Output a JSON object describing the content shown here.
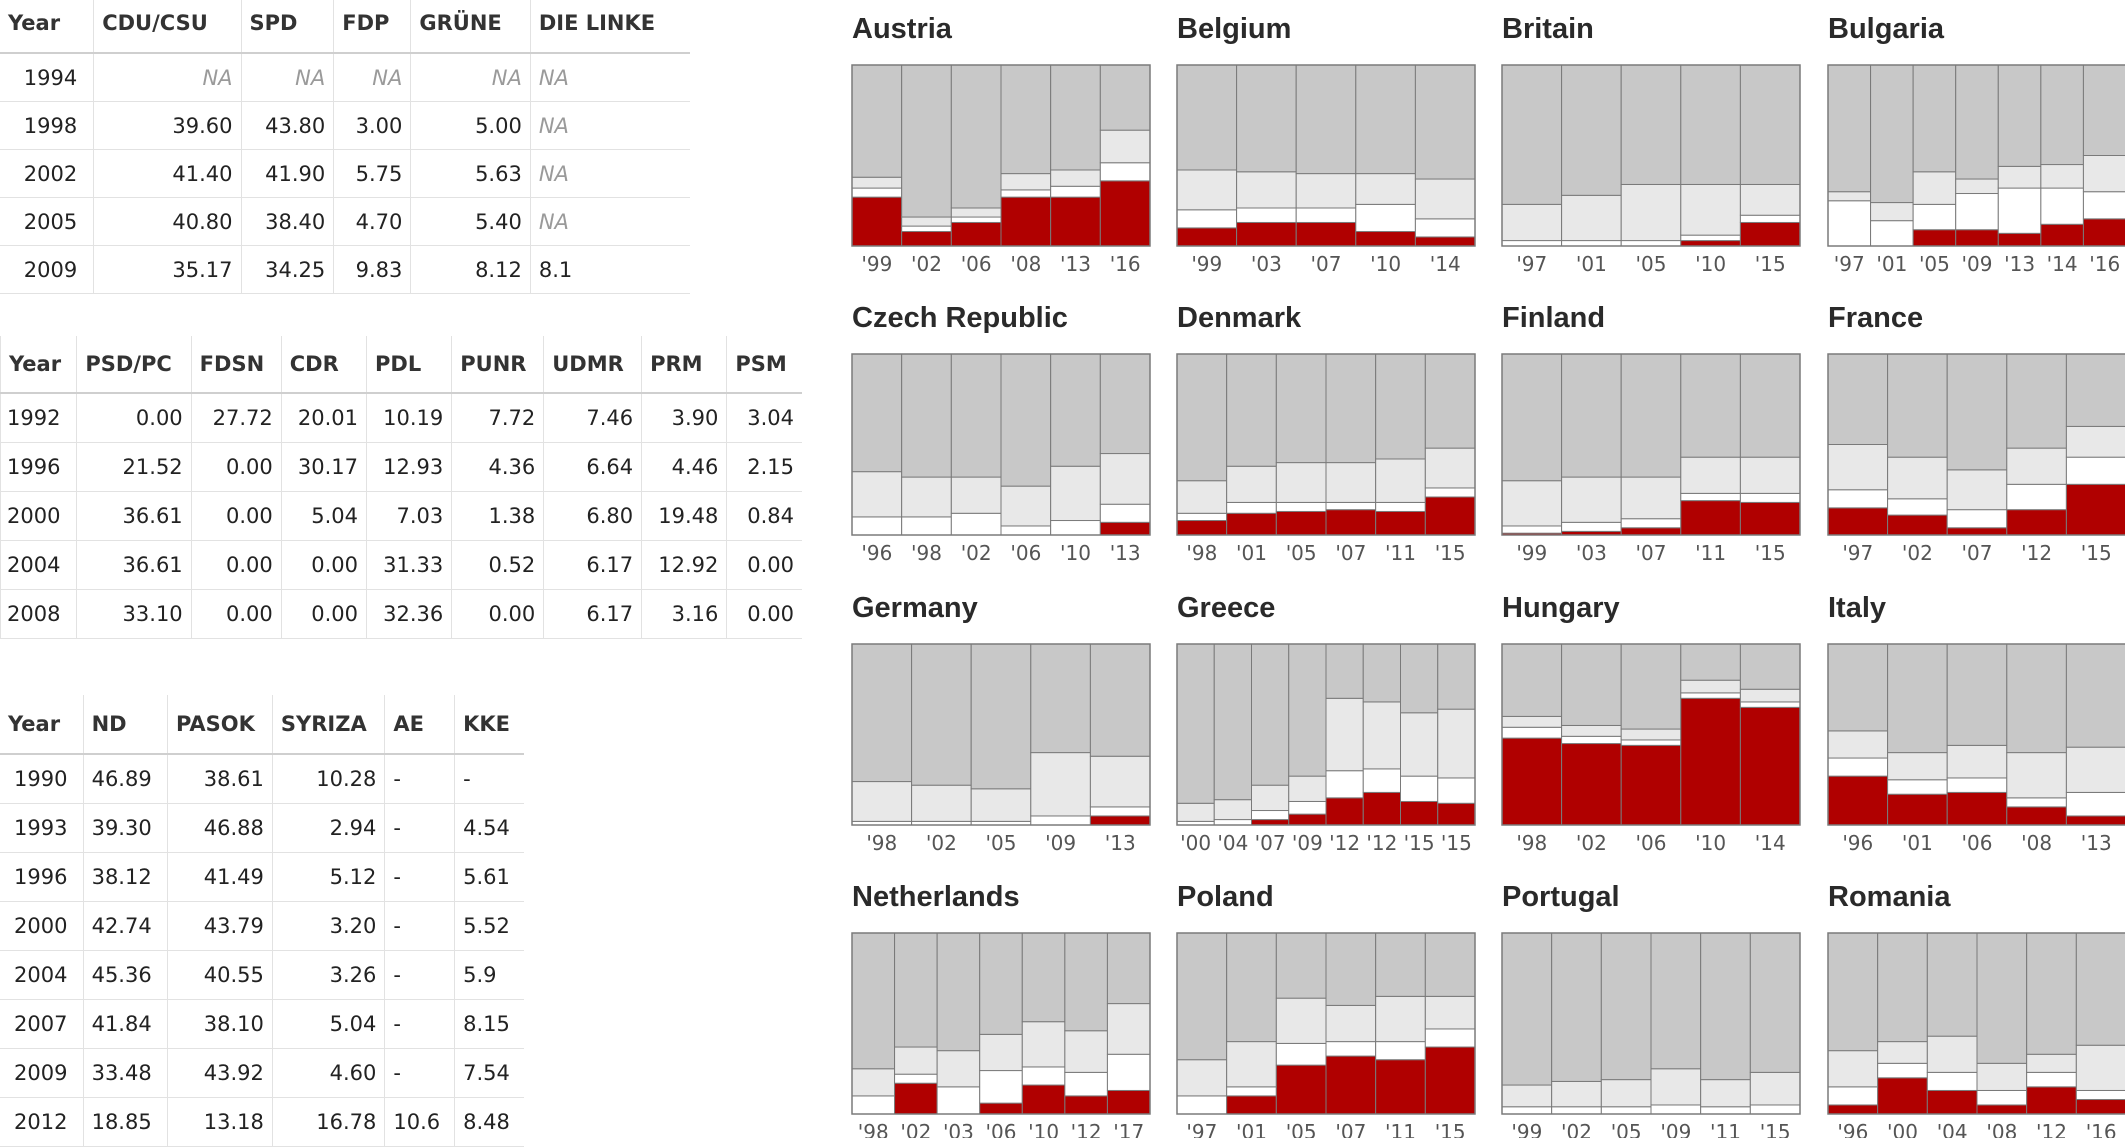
{
  "tables": [
    {
      "columns": [
        "Year",
        "CDU/CSU",
        "SPD",
        "FDP",
        "GRÜNE",
        "DIE LINKE"
      ],
      "rows": [
        [
          "1994",
          "NA",
          "NA",
          "NA",
          "NA",
          "NA"
        ],
        [
          "1998",
          "39.60",
          "43.80",
          "3.00",
          "5.00",
          "NA"
        ],
        [
          "2002",
          "41.40",
          "41.90",
          "5.75",
          "5.63",
          "NA"
        ],
        [
          "2005",
          "40.80",
          "38.40",
          "4.70",
          "5.40",
          "NA"
        ],
        [
          "2009",
          "35.17",
          "34.25",
          "9.83",
          "8.12",
          "8.1"
        ]
      ]
    },
    {
      "columns": [
        "Year",
        "PSD/PC",
        "FDSN",
        "CDR",
        "PDL",
        "PUNR",
        "UDMR",
        "PRM",
        "PSM"
      ],
      "rows": [
        [
          "1992",
          "0.00",
          "27.72",
          "20.01",
          "10.19",
          "7.72",
          "7.46",
          "3.90",
          "3.04"
        ],
        [
          "1996",
          "21.52",
          "0.00",
          "30.17",
          "12.93",
          "4.36",
          "6.64",
          "4.46",
          "2.15"
        ],
        [
          "2000",
          "36.61",
          "0.00",
          "5.04",
          "7.03",
          "1.38",
          "6.80",
          "19.48",
          "0.84"
        ],
        [
          "2004",
          "36.61",
          "0.00",
          "0.00",
          "31.33",
          "0.52",
          "6.17",
          "12.92",
          "0.00"
        ],
        [
          "2008",
          "33.10",
          "0.00",
          "0.00",
          "32.36",
          "0.00",
          "6.17",
          "3.16",
          "0.00"
        ]
      ]
    },
    {
      "columns": [
        "Year",
        "ND",
        "PASOK",
        "SYRIZA",
        "AE",
        "KKE"
      ],
      "rows": [
        [
          "1990",
          "46.89",
          "38.61",
          "10.28",
          "-",
          "-"
        ],
        [
          "1993",
          "39.30",
          "46.88",
          "2.94",
          "-",
          "4.54"
        ],
        [
          "1996",
          "38.12",
          "41.49",
          "5.12",
          "-",
          "5.61"
        ],
        [
          "2000",
          "42.74",
          "43.79",
          "3.20",
          "-",
          "5.52"
        ],
        [
          "2004",
          "45.36",
          "40.55",
          "3.26",
          "-",
          "5.9"
        ],
        [
          "2007",
          "41.84",
          "38.10",
          "5.04",
          "-",
          "8.15"
        ],
        [
          "2009",
          "33.48",
          "43.92",
          "4.60",
          "-",
          "7.54"
        ],
        [
          "2012",
          "18.85",
          "13.18",
          "16.78",
          "10.6",
          "8.48"
        ]
      ]
    }
  ],
  "colors": {
    "red": "#b00000",
    "grey": "#c8c8c8",
    "light": "#e8e8e8",
    "white": "#ffffff"
  },
  "chart_data": [
    {
      "type": "bar",
      "title": "Austria",
      "categories": [
        "'99",
        "'02",
        "'06",
        "'08",
        "'13",
        "'16"
      ],
      "ylim": [
        0,
        100
      ],
      "series": [
        {
          "values": [
            27,
            8,
            13,
            27,
            27,
            36
          ]
        },
        {
          "values": [
            5,
            3,
            3,
            4,
            6,
            10
          ]
        },
        {
          "values": [
            6,
            5,
            5,
            9,
            9,
            18
          ]
        },
        {
          "values": [
            62,
            84,
            79,
            60,
            58,
            36
          ]
        }
      ]
    },
    {
      "type": "bar",
      "title": "Belgium",
      "categories": [
        "'99",
        "'03",
        "'07",
        "'10",
        "'14"
      ],
      "ylim": [
        0,
        100
      ],
      "series": [
        {
          "values": [
            10,
            13,
            13,
            8,
            5
          ]
        },
        {
          "values": [
            10,
            8,
            8,
            15,
            10
          ]
        },
        {
          "values": [
            22,
            20,
            19,
            17,
            22
          ]
        },
        {
          "values": [
            58,
            59,
            60,
            60,
            63
          ]
        }
      ]
    },
    {
      "type": "bar",
      "title": "Britain",
      "categories": [
        "'97",
        "'01",
        "'05",
        "'10",
        "'15"
      ],
      "ylim": [
        0,
        100
      ],
      "series": [
        {
          "values": [
            0,
            0,
            0,
            3,
            13
          ]
        },
        {
          "values": [
            3,
            3,
            3,
            3,
            4
          ]
        },
        {
          "values": [
            20,
            25,
            31,
            28,
            17
          ]
        },
        {
          "values": [
            77,
            72,
            66,
            66,
            66
          ]
        }
      ]
    },
    {
      "type": "bar",
      "title": "Bulgaria",
      "categories": [
        "'97",
        "'01",
        "'05",
        "'09",
        "'13",
        "'14",
        "'16"
      ],
      "ylim": [
        0,
        100
      ],
      "series": [
        {
          "values": [
            0,
            0,
            9,
            9,
            7,
            12,
            15
          ]
        },
        {
          "values": [
            25,
            14,
            14,
            20,
            25,
            20,
            15
          ]
        },
        {
          "values": [
            5,
            10,
            18,
            8,
            12,
            13,
            20
          ]
        },
        {
          "values": [
            70,
            76,
            59,
            63,
            56,
            55,
            50
          ]
        }
      ]
    },
    {
      "type": "bar",
      "title": "Czech Republic",
      "categories": [
        "'96",
        "'98",
        "'02",
        "'06",
        "'10",
        "'13"
      ],
      "ylim": [
        0,
        100
      ],
      "series": [
        {
          "values": [
            0,
            0,
            0,
            0,
            0,
            7
          ]
        },
        {
          "values": [
            10,
            10,
            12,
            5,
            8,
            10
          ]
        },
        {
          "values": [
            25,
            22,
            20,
            22,
            30,
            28
          ]
        },
        {
          "values": [
            65,
            68,
            68,
            73,
            62,
            55
          ]
        }
      ]
    },
    {
      "type": "bar",
      "title": "Denmark",
      "categories": [
        "'98",
        "'01",
        "'05",
        "'07",
        "'11",
        "'15"
      ],
      "ylim": [
        0,
        100
      ],
      "series": [
        {
          "values": [
            8,
            12,
            13,
            14,
            13,
            21
          ]
        },
        {
          "values": [
            4,
            6,
            5,
            4,
            5,
            5
          ]
        },
        {
          "values": [
            18,
            20,
            22,
            22,
            24,
            22
          ]
        },
        {
          "values": [
            70,
            62,
            60,
            60,
            58,
            52
          ]
        }
      ]
    },
    {
      "type": "bar",
      "title": "Finland",
      "categories": [
        "'99",
        "'03",
        "'07",
        "'11",
        "'15"
      ],
      "ylim": [
        0,
        100
      ],
      "series": [
        {
          "values": [
            1,
            2,
            4,
            19,
            18
          ]
        },
        {
          "values": [
            4,
            5,
            5,
            4,
            5
          ]
        },
        {
          "values": [
            25,
            25,
            23,
            20,
            20
          ]
        },
        {
          "values": [
            70,
            68,
            68,
            57,
            57
          ]
        }
      ]
    },
    {
      "type": "bar",
      "title": "France",
      "categories": [
        "'97",
        "'02",
        "'07",
        "'12",
        "'15"
      ],
      "ylim": [
        0,
        100
      ],
      "series": [
        {
          "values": [
            15,
            11,
            4,
            14,
            28
          ]
        },
        {
          "values": [
            10,
            9,
            10,
            14,
            15
          ]
        },
        {
          "values": [
            25,
            23,
            22,
            20,
            17
          ]
        },
        {
          "values": [
            50,
            57,
            64,
            52,
            40
          ]
        }
      ]
    },
    {
      "type": "bar",
      "title": "Germany",
      "categories": [
        "'98",
        "'02",
        "'05",
        "'09",
        "'13"
      ],
      "ylim": [
        0,
        100
      ],
      "series": [
        {
          "values": [
            0,
            0,
            0,
            0,
            5
          ]
        },
        {
          "values": [
            2,
            2,
            2,
            5,
            5
          ]
        },
        {
          "values": [
            22,
            20,
            18,
            35,
            28
          ]
        },
        {
          "values": [
            76,
            78,
            80,
            60,
            62
          ]
        }
      ]
    },
    {
      "type": "bar",
      "title": "Greece",
      "categories": [
        "'00",
        "'04",
        "'07",
        "'09",
        "'12",
        "'12",
        "'15",
        "'15"
      ],
      "ylim": [
        0,
        100
      ],
      "series": [
        {
          "values": [
            0,
            0,
            3,
            6,
            15,
            18,
            13,
            12
          ]
        },
        {
          "values": [
            2,
            3,
            5,
            7,
            15,
            13,
            14,
            14
          ]
        },
        {
          "values": [
            10,
            11,
            14,
            14,
            40,
            37,
            35,
            38
          ]
        },
        {
          "values": [
            88,
            86,
            78,
            73,
            30,
            32,
            38,
            36
          ]
        }
      ]
    },
    {
      "type": "bar",
      "title": "Hungary",
      "categories": [
        "'98",
        "'02",
        "'06",
        "'10",
        "'14"
      ],
      "ylim": [
        0,
        100
      ],
      "series": [
        {
          "values": [
            48,
            45,
            44,
            70,
            65
          ]
        },
        {
          "values": [
            6,
            4,
            3,
            3,
            3
          ]
        },
        {
          "values": [
            6,
            6,
            6,
            7,
            7
          ]
        },
        {
          "values": [
            40,
            45,
            47,
            20,
            25
          ]
        }
      ]
    },
    {
      "type": "bar",
      "title": "Italy",
      "categories": [
        "'96",
        "'01",
        "'06",
        "'08",
        "'13"
      ],
      "ylim": [
        0,
        100
      ],
      "series": [
        {
          "values": [
            27,
            17,
            18,
            10,
            5
          ]
        },
        {
          "values": [
            10,
            8,
            8,
            5,
            13
          ]
        },
        {
          "values": [
            15,
            15,
            18,
            25,
            25
          ]
        },
        {
          "values": [
            48,
            60,
            56,
            60,
            57
          ]
        }
      ]
    },
    {
      "type": "bar",
      "title": "Netherlands",
      "categories": [
        "'98",
        "'02",
        "'03",
        "'06",
        "'10",
        "'12",
        "'17"
      ],
      "ylim": [
        0,
        100
      ],
      "series": [
        {
          "values": [
            0,
            17,
            0,
            6,
            16,
            10,
            13
          ]
        },
        {
          "values": [
            10,
            5,
            15,
            18,
            10,
            13,
            20
          ]
        },
        {
          "values": [
            15,
            15,
            20,
            20,
            25,
            23,
            28
          ]
        },
        {
          "values": [
            75,
            63,
            65,
            56,
            49,
            54,
            39
          ]
        }
      ]
    },
    {
      "type": "bar",
      "title": "Poland",
      "categories": [
        "'97",
        "'01",
        "'05",
        "'07",
        "'11",
        "'15"
      ],
      "ylim": [
        0,
        100
      ],
      "series": [
        {
          "values": [
            0,
            10,
            27,
            32,
            30,
            37
          ]
        },
        {
          "values": [
            10,
            5,
            12,
            8,
            10,
            10
          ]
        },
        {
          "values": [
            20,
            25,
            25,
            20,
            25,
            18
          ]
        },
        {
          "values": [
            70,
            60,
            36,
            40,
            35,
            35
          ]
        }
      ]
    },
    {
      "type": "bar",
      "title": "Portugal",
      "categories": [
        "'99",
        "'02",
        "'05",
        "'09",
        "'11",
        "'15"
      ],
      "ylim": [
        0,
        100
      ],
      "series": [
        {
          "values": [
            0,
            0,
            0,
            0,
            0,
            0
          ]
        },
        {
          "values": [
            4,
            4,
            4,
            5,
            4,
            5
          ]
        },
        {
          "values": [
            12,
            14,
            15,
            20,
            15,
            18
          ]
        },
        {
          "values": [
            84,
            82,
            81,
            75,
            81,
            77
          ]
        }
      ]
    },
    {
      "type": "bar",
      "title": "Romania",
      "categories": [
        "'96",
        "'00",
        "'04",
        "'08",
        "'12",
        "'16"
      ],
      "ylim": [
        0,
        100
      ],
      "series": [
        {
          "values": [
            5,
            20,
            13,
            5,
            15,
            8
          ]
        },
        {
          "values": [
            10,
            8,
            10,
            8,
            8,
            5
          ]
        },
        {
          "values": [
            20,
            12,
            20,
            15,
            10,
            25
          ]
        },
        {
          "values": [
            65,
            60,
            57,
            72,
            67,
            62
          ]
        }
      ]
    }
  ]
}
